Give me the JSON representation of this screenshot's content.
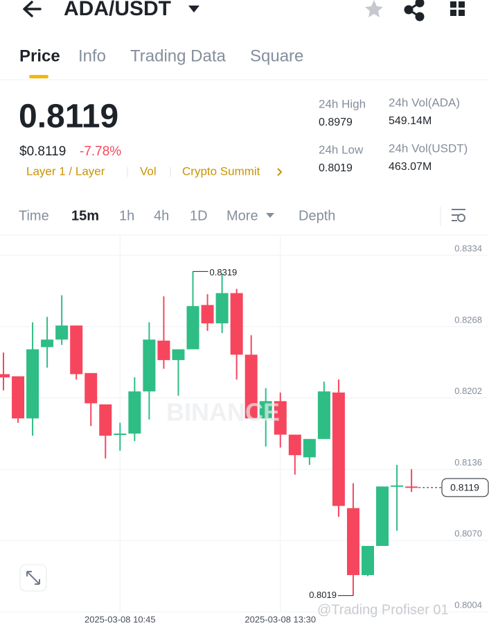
{
  "header": {
    "pair": "ADA/USDT"
  },
  "tabs": [
    "Price",
    "Info",
    "Trading Data",
    "Square"
  ],
  "price": {
    "last": "0.8119",
    "usd": "$0.8119",
    "change": "-7.78%"
  },
  "tags": [
    "Layer 1 / Layer",
    "Vol",
    "Crypto Summit"
  ],
  "stats": [
    {
      "label": "24h High",
      "value": "0.8979"
    },
    {
      "label": "24h Vol(ADA)",
      "value": "549.14M"
    },
    {
      "label": "24h Low",
      "value": "0.8019"
    },
    {
      "label": "24h Vol(USDT)",
      "value": "463.07M"
    }
  ],
  "intervals": [
    "Time",
    "15m",
    "1h",
    "4h",
    "1D",
    "More",
    "Depth"
  ],
  "chart_data": {
    "type": "candlestick",
    "categories": [
      null,
      null,
      null,
      null,
      null,
      null,
      null,
      null,
      "2025-03-08 10:45",
      null,
      null,
      null,
      null,
      null,
      null,
      null,
      null,
      null,
      null,
      "2025-03-08 13:30",
      null,
      null,
      null,
      null,
      null,
      null,
      null,
      null,
      null
    ],
    "open": [
      0.8224,
      0.8222,
      0.8183,
      0.8249,
      0.8256,
      0.8269,
      0.8225,
      0.8196,
      0.8168,
      0.8169,
      0.8208,
      0.8255,
      0.8237,
      0.8247,
      0.8288,
      0.8271,
      0.8299,
      0.8242,
      0.8183,
      0.8199,
      0.8168,
      0.8147,
      0.8164,
      0.8207,
      0.81,
      0.8038,
      0.8065,
      0.812,
      0.812
    ],
    "high": [
      0.8244,
      0.8222,
      0.8272,
      0.8277,
      0.8297,
      0.8269,
      0.8225,
      0.8196,
      0.8179,
      0.8221,
      0.8272,
      0.8296,
      0.8247,
      0.8319,
      0.8298,
      0.8317,
      0.8303,
      0.826,
      0.8211,
      0.8207,
      0.8168,
      0.8164,
      0.8217,
      0.8219,
      0.8123,
      0.8065,
      0.812,
      0.814,
      0.8136
    ],
    "low": [
      0.8209,
      0.8179,
      0.8167,
      0.823,
      0.8251,
      0.8219,
      0.8176,
      0.8146,
      0.8153,
      0.8162,
      0.8182,
      0.8229,
      0.8204,
      0.8247,
      0.8264,
      0.8262,
      0.8219,
      0.8183,
      0.8157,
      0.8156,
      0.8131,
      0.814,
      0.8164,
      0.8092,
      0.8019,
      0.8037,
      0.8065,
      0.8079,
      0.8115
    ],
    "close": [
      0.8221,
      0.8183,
      0.8247,
      0.8256,
      0.8269,
      0.8224,
      0.8197,
      0.8167,
      0.8169,
      0.8208,
      0.8256,
      0.8237,
      0.8247,
      0.8287,
      0.8271,
      0.8299,
      0.8242,
      0.8183,
      0.8199,
      0.8168,
      0.8149,
      0.8164,
      0.8208,
      0.8102,
      0.8038,
      0.8065,
      0.812,
      0.8121,
      0.8119
    ],
    "ylim": [
      0.8004,
      0.8352
    ],
    "yticks": [
      0.8334,
      0.8268,
      0.8202,
      0.8136,
      {
        "value": 0.807,
        "label": "0.8070"
      },
      0.8004
    ],
    "up_color": "#2ebd85",
    "down_color": "#f6465d",
    "grid": true
  },
  "watermarks": [
    "BINANCE",
    "@Trading Profiser 01"
  ]
}
